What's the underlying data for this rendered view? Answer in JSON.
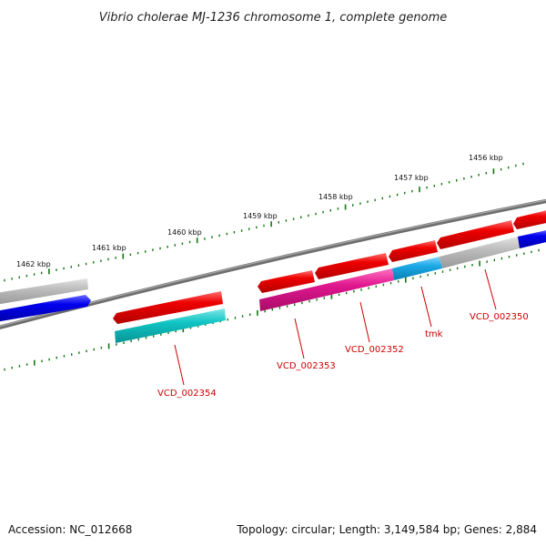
{
  "title": "Vibrio cholerae MJ-1236 chromosome 1, complete genome",
  "footer": {
    "accession": "Accession: NC_012668",
    "summary": "Topology: circular; Length: 3,149,584 bp; Genes: 2,884"
  },
  "ticks": [
    {
      "label": "1456 kbp"
    },
    {
      "label": "1457 kbp"
    },
    {
      "label": "1458 kbp"
    },
    {
      "label": "1459 kbp"
    },
    {
      "label": "1460 kbp"
    },
    {
      "label": "1461 kbp"
    },
    {
      "label": "1462 kbp"
    }
  ],
  "gene_labels": [
    {
      "label": "VCD_002350"
    },
    {
      "label": "tmk"
    },
    {
      "label": "VCD_002352"
    },
    {
      "label": "VCD_002353"
    },
    {
      "label": "VCD_002354"
    }
  ],
  "colors": {
    "backbone": "#7a7a7a",
    "gene_red": "#ee0000",
    "gene_blue": "#0000ee",
    "gene_gray": "#b8b8b8",
    "gene_cyan": "#11c4c4",
    "gene_magenta": "#e0168e",
    "gene_skyblue": "#1aa8e6",
    "tick": "#117711",
    "label": "#cc0000"
  }
}
